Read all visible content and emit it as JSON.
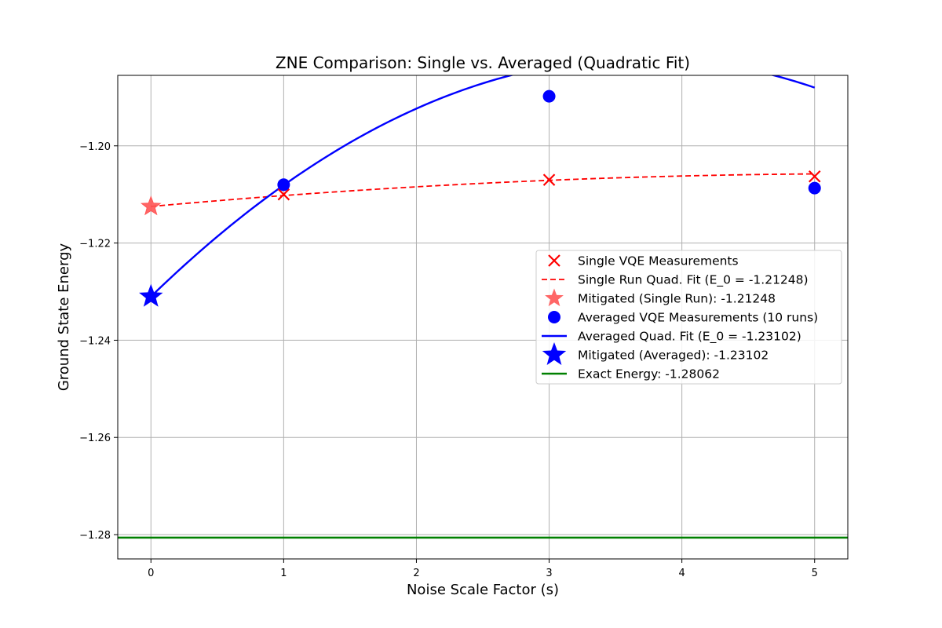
{
  "chart_data": {
    "type": "line",
    "title": "ZNE Comparison: Single vs. Averaged (Quadratic Fit)",
    "xlabel": "Noise Scale Factor (s)",
    "ylabel": "Ground State Energy",
    "xlim": [
      -0.25,
      5.25
    ],
    "ylim": [
      -1.285,
      -1.1855
    ],
    "x_ticks": [
      0,
      1,
      2,
      3,
      4,
      5
    ],
    "x_tick_labels": [
      "0",
      "1",
      "2",
      "3",
      "4",
      "5"
    ],
    "y_ticks": [
      -1.28,
      -1.26,
      -1.24,
      -1.22,
      -1.2
    ],
    "y_tick_labels": [
      "−1.28",
      "−1.26",
      "−1.24",
      "−1.22",
      "−1.20"
    ],
    "grid": true,
    "legend_position": "center-right",
    "series": [
      {
        "name": "Single VQE Measurements",
        "kind": "scatter",
        "marker": "x",
        "color": "#ff0000",
        "x": [
          1,
          3,
          5
        ],
        "y": [
          -1.21,
          -1.207,
          -1.2063
        ]
      },
      {
        "name": "Single Run Quad. Fit (E_0 = -1.21248)",
        "kind": "line",
        "style": "dashed",
        "color": "#ff0000",
        "quadratic_coeffs": [
          -1.21248,
          0.0024775,
          -0.0002275
        ],
        "x_range": [
          0,
          5
        ]
      },
      {
        "name": "Mitigated (Single Run): -1.21248",
        "kind": "scatter",
        "marker": "star",
        "color": "#ff5555",
        "x": [
          0
        ],
        "y": [
          -1.21248
        ]
      },
      {
        "name": "Averaged VQE Measurements (10 runs)",
        "kind": "scatter",
        "marker": "circle",
        "color": "#0000ff",
        "x": [
          1,
          3,
          5
        ],
        "y": [
          -1.208,
          -1.1898,
          -1.2087
        ]
      },
      {
        "name": "Averaged Quad. Fit (E_0 = -1.23102)",
        "kind": "line",
        "style": "solid",
        "color": "#0000ff",
        "quadratic_coeffs": [
          -1.23102,
          0.0265,
          -0.00358
        ],
        "x_range": [
          0,
          5
        ]
      },
      {
        "name": "Mitigated (Averaged): -1.23102",
        "kind": "scatter",
        "marker": "star",
        "color": "#0000ff",
        "x": [
          0
        ],
        "y": [
          -1.23102
        ]
      },
      {
        "name": "Exact Energy: -1.28062",
        "kind": "hline",
        "color": "#008000",
        "y": -1.28062
      }
    ]
  }
}
